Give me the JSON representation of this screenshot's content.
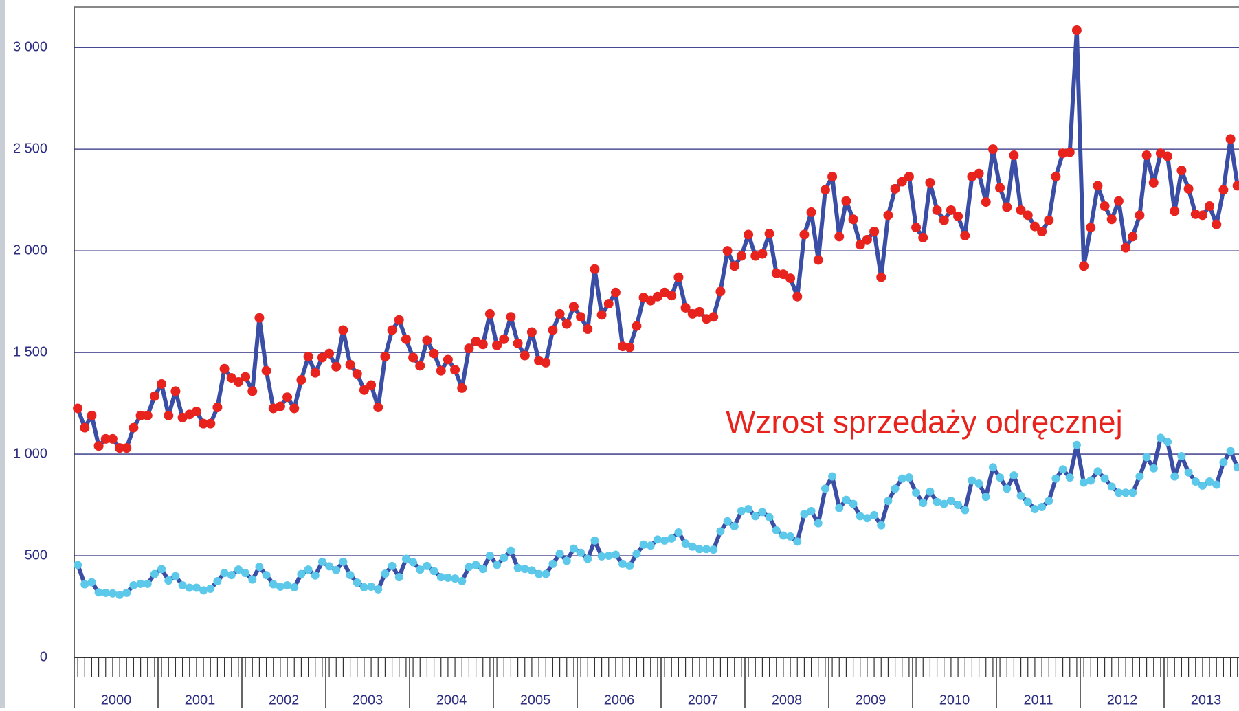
{
  "chart_data": {
    "type": "line",
    "annotation": "Wzrost sprzedaży odręcznej",
    "x": [
      "2000-01",
      "2000-02",
      "2000-03",
      "2000-04",
      "2000-05",
      "2000-06",
      "2000-07",
      "2000-08",
      "2000-09",
      "2000-10",
      "2000-11",
      "2000-12",
      "2001-01",
      "2001-02",
      "2001-03",
      "2001-04",
      "2001-05",
      "2001-06",
      "2001-07",
      "2001-08",
      "2001-09",
      "2001-10",
      "2001-11",
      "2001-12",
      "2002-01",
      "2002-02",
      "2002-03",
      "2002-04",
      "2002-05",
      "2002-06",
      "2002-07",
      "2002-08",
      "2002-09",
      "2002-10",
      "2002-11",
      "2002-12",
      "2003-01",
      "2003-02",
      "2003-03",
      "2003-04",
      "2003-05",
      "2003-06",
      "2003-07",
      "2003-08",
      "2003-09",
      "2003-10",
      "2003-11",
      "2003-12",
      "2004-01",
      "2004-02",
      "2004-03",
      "2004-04",
      "2004-05",
      "2004-06",
      "2004-07",
      "2004-08",
      "2004-09",
      "2004-10",
      "2004-11",
      "2004-12",
      "2005-01",
      "2005-02",
      "2005-03",
      "2005-04",
      "2005-05",
      "2005-06",
      "2005-07",
      "2005-08",
      "2005-09",
      "2005-10",
      "2005-11",
      "2005-12",
      "2006-01",
      "2006-02",
      "2006-03",
      "2006-04",
      "2006-05",
      "2006-06",
      "2006-07",
      "2006-08",
      "2006-09",
      "2006-10",
      "2006-11",
      "2006-12",
      "2007-01",
      "2007-02",
      "2007-03",
      "2007-04",
      "2007-05",
      "2007-06",
      "2007-07",
      "2007-08",
      "2007-09",
      "2007-10",
      "2007-11",
      "2007-12",
      "2008-01",
      "2008-02",
      "2008-03",
      "2008-04",
      "2008-05",
      "2008-06",
      "2008-07",
      "2008-08",
      "2008-09",
      "2008-10",
      "2008-11",
      "2008-12",
      "2009-01",
      "2009-02",
      "2009-03",
      "2009-04",
      "2009-05",
      "2009-06",
      "2009-07",
      "2009-08",
      "2009-09",
      "2009-10",
      "2009-11",
      "2009-12",
      "2010-01",
      "2010-02",
      "2010-03",
      "2010-04",
      "2010-05",
      "2010-06",
      "2010-07",
      "2010-08",
      "2010-09",
      "2010-10",
      "2010-11",
      "2010-12",
      "2011-01",
      "2011-02",
      "2011-03",
      "2011-04",
      "2011-05",
      "2011-06",
      "2011-07",
      "2011-08",
      "2011-09",
      "2011-10",
      "2011-11",
      "2011-12",
      "2012-01",
      "2012-02",
      "2012-03",
      "2012-04",
      "2012-05",
      "2012-06",
      "2012-07",
      "2012-08",
      "2012-09",
      "2012-10",
      "2012-11",
      "2012-12",
      "2013-01",
      "2013-02",
      "2013-03",
      "2013-04",
      "2013-05",
      "2013-06",
      "2013-07",
      "2013-08",
      "2013-09",
      "2013-10",
      "2013-11"
    ],
    "year_labels": [
      "2000",
      "2001",
      "2002",
      "2003",
      "2004",
      "2005",
      "2006",
      "2007",
      "2008",
      "2009",
      "2010",
      "2011",
      "2012",
      "2013"
    ],
    "series": [
      {
        "line_color": "#3b4ea6",
        "color": "#e8231d",
        "values": [
          1225,
          1130,
          1190,
          1040,
          1075,
          1075,
          1030,
          1030,
          1130,
          1190,
          1190,
          1285,
          1345,
          1190,
          1310,
          1180,
          1195,
          1210,
          1150,
          1150,
          1230,
          1420,
          1375,
          1355,
          1380,
          1310,
          1670,
          1410,
          1225,
          1235,
          1280,
          1225,
          1365,
          1480,
          1400,
          1475,
          1495,
          1430,
          1610,
          1440,
          1395,
          1315,
          1340,
          1230,
          1480,
          1610,
          1660,
          1565,
          1475,
          1435,
          1560,
          1495,
          1410,
          1465,
          1415,
          1325,
          1520,
          1555,
          1540,
          1690,
          1535,
          1565,
          1675,
          1545,
          1485,
          1600,
          1460,
          1450,
          1610,
          1690,
          1640,
          1725,
          1675,
          1615,
          1910,
          1685,
          1740,
          1795,
          1530,
          1525,
          1630,
          1770,
          1755,
          1775,
          1795,
          1780,
          1870,
          1720,
          1690,
          1700,
          1665,
          1675,
          1800,
          2000,
          1925,
          1975,
          2080,
          1975,
          1985,
          2085,
          1890,
          1885,
          1865,
          1775,
          2080,
          2190,
          1955,
          2300,
          2365,
          2070,
          2245,
          2155,
          2030,
          2055,
          2095,
          1870,
          2175,
          2305,
          2340,
          2365,
          2115,
          2065,
          2335,
          2200,
          2150,
          2200,
          2170,
          2075,
          2365,
          2380,
          2240,
          2500,
          2310,
          2215,
          2470,
          2200,
          2175,
          2120,
          2095,
          2150,
          2365,
          2480,
          2485,
          3085,
          1925,
          2115,
          2320,
          2220,
          2155,
          2245,
          2015,
          2070,
          2175,
          2470,
          2335,
          2480,
          2465,
          2195,
          2395,
          2305,
          2180,
          2175,
          2220,
          2130,
          2300,
          2550,
          2320
        ]
      },
      {
        "line_color": "#3b4ea6",
        "color": "#5cc8ea",
        "values": [
          455,
          360,
          370,
          320,
          318,
          315,
          308,
          318,
          355,
          362,
          362,
          410,
          435,
          378,
          400,
          355,
          343,
          343,
          330,
          338,
          375,
          415,
          405,
          432,
          415,
          383,
          445,
          405,
          360,
          348,
          355,
          345,
          410,
          432,
          403,
          470,
          448,
          430,
          470,
          405,
          368,
          345,
          348,
          335,
          412,
          450,
          395,
          485,
          468,
          432,
          450,
          425,
          395,
          392,
          388,
          375,
          445,
          455,
          435,
          500,
          455,
          490,
          525,
          440,
          435,
          428,
          410,
          410,
          460,
          510,
          475,
          535,
          515,
          485,
          575,
          497,
          500,
          505,
          460,
          450,
          510,
          555,
          550,
          580,
          575,
          585,
          615,
          560,
          545,
          533,
          533,
          530,
          620,
          670,
          645,
          720,
          730,
          695,
          715,
          690,
          625,
          600,
          595,
          570,
          705,
          720,
          660,
          830,
          890,
          735,
          775,
          755,
          695,
          685,
          700,
          650,
          770,
          830,
          880,
          885,
          810,
          760,
          815,
          765,
          755,
          770,
          750,
          725,
          870,
          855,
          790,
          935,
          885,
          830,
          895,
          795,
          765,
          730,
          740,
          770,
          880,
          925,
          885,
          1045,
          860,
          870,
          915,
          880,
          840,
          810,
          810,
          810,
          890,
          985,
          930,
          1080,
          1060,
          890,
          990,
          910,
          865,
          845,
          865,
          850,
          960,
          1015,
          935
        ]
      }
    ],
    "ylim": [
      0,
      3200
    ],
    "yticks": [
      0,
      500,
      {
        "value": 1000,
        "label": "1 000"
      },
      {
        "value": 1500,
        "label": "1 500"
      },
      {
        "value": 2000,
        "label": "2 000"
      },
      {
        "value": 2500,
        "label": "2 500"
      },
      {
        "value": 3000,
        "label": "3 000"
      }
    ],
    "grid": true,
    "grid_color": "#2e2e80"
  }
}
